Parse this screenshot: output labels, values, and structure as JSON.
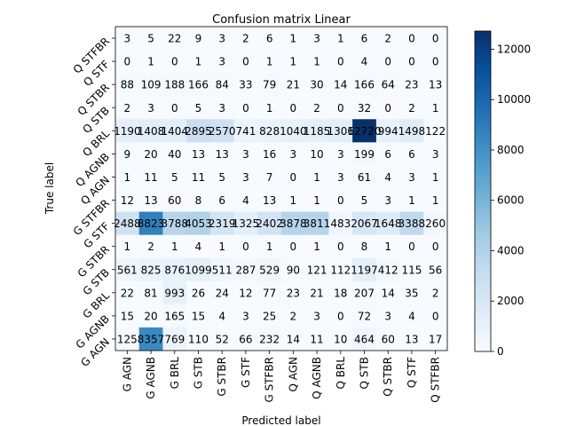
{
  "chart_data": {
    "type": "heatmap",
    "title": "Confusion matrix Linear",
    "xlabel": "Predicted label",
    "ylabel": "True label",
    "x_categories": [
      "G AGN",
      "G AGNB",
      "G BRL",
      "G STB",
      "G STBR",
      "G STF",
      "G STFBR",
      "Q AGN",
      "Q AGNB",
      "Q BRL",
      "Q STB",
      "Q STBR",
      "Q STF",
      "Q STFBR"
    ],
    "y_categories": [
      "Q STFBR",
      "Q STF",
      "Q STBR",
      "Q STB",
      "Q BRL",
      "Q AGNB",
      "Q AGN",
      "G STFBR",
      "G STF",
      "G STBR",
      "G STB",
      "G BRL",
      "G AGNB",
      "G AGN"
    ],
    "matrix": [
      [
        3,
        5,
        22,
        9,
        3,
        2,
        6,
        1,
        3,
        1,
        6,
        2,
        0,
        0
      ],
      [
        0,
        1,
        0,
        1,
        3,
        0,
        1,
        1,
        1,
        0,
        4,
        0,
        0,
        0
      ],
      [
        88,
        109,
        188,
        166,
        84,
        33,
        79,
        21,
        30,
        14,
        166,
        64,
        23,
        13
      ],
      [
        2,
        3,
        0,
        5,
        3,
        0,
        1,
        0,
        2,
        0,
        32,
        0,
        2,
        1
      ],
      [
        1190,
        1408,
        1404,
        2895,
        2570,
        741,
        828,
        1040,
        1185,
        1306,
        12720,
        994,
        1498,
        122
      ],
      [
        9,
        20,
        40,
        13,
        13,
        3,
        16,
        3,
        10,
        3,
        199,
        6,
        6,
        3
      ],
      [
        1,
        11,
        5,
        11,
        5,
        3,
        7,
        0,
        1,
        3,
        61,
        4,
        3,
        1
      ],
      [
        12,
        13,
        60,
        8,
        6,
        4,
        13,
        1,
        1,
        0,
        5,
        3,
        1,
        1
      ],
      [
        2488,
        8823,
        3788,
        4053,
        2319,
        1325,
        2402,
        3878,
        3811,
        483,
        2067,
        1648,
        3388,
        260
      ],
      [
        1,
        2,
        1,
        4,
        1,
        0,
        1,
        0,
        1,
        0,
        8,
        1,
        0,
        0
      ],
      [
        561,
        825,
        876,
        1099,
        511,
        287,
        529,
        90,
        121,
        112,
        1197,
        412,
        115,
        56
      ],
      [
        22,
        81,
        993,
        26,
        24,
        12,
        77,
        23,
        21,
        18,
        207,
        14,
        35,
        2
      ],
      [
        15,
        20,
        165,
        15,
        4,
        3,
        25,
        2,
        3,
        0,
        72,
        3,
        4,
        0
      ],
      [
        125,
        8357,
        769,
        110,
        52,
        66,
        232,
        14,
        11,
        10,
        464,
        60,
        13,
        17
      ]
    ],
    "colorbar": {
      "colormap": "Blues",
      "min": 0,
      "max": 12720,
      "ticks": [
        0,
        2000,
        4000,
        6000,
        8000,
        10000,
        12000
      ]
    },
    "grid": false,
    "legend": "none"
  }
}
